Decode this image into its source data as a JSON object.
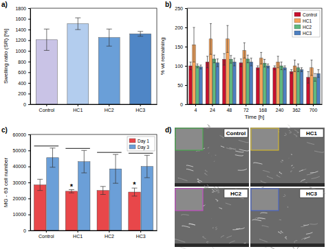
{
  "chart_data": [
    {
      "type": "bar",
      "panel_label": "a)",
      "y_label": "Swelling ratio (SR) [%]",
      "categories": [
        "Control",
        "HC1",
        "HC2",
        "HC3"
      ],
      "values": [
        1210,
        1510,
        1250,
        1320
      ],
      "errors": [
        200,
        110,
        160,
        45
      ],
      "colors": [
        "#c9c3e6",
        "#b3cdee",
        "#6a9fd8",
        "#4f86c6"
      ],
      "ylim": [
        0,
        1800
      ],
      "yticks": [
        0,
        200,
        400,
        600,
        800,
        1000,
        1200,
        1400,
        1600,
        1800
      ]
    },
    {
      "type": "bar",
      "panel_label": "b)",
      "x_label": "Time [h]",
      "y_label": "% wt remaining",
      "categories": [
        "4",
        "24",
        "48",
        "72",
        "168",
        "240",
        "362",
        "700"
      ],
      "series": [
        {
          "name": "Control",
          "color": "#c8102e",
          "values": [
            100,
            110,
            117,
            108,
            95,
            95,
            85,
            70
          ],
          "errors": [
            10,
            15,
            15,
            10,
            5,
            5,
            5,
            15
          ]
        },
        {
          "name": "HC1",
          "color": "#f5a35b",
          "values": [
            155,
            170,
            170,
            140,
            120,
            110,
            100,
            95
          ],
          "errors": [
            45,
            40,
            35,
            20,
            15,
            15,
            15,
            20
          ]
        },
        {
          "name": "HC2",
          "color": "#5fb87f",
          "values": [
            100,
            118,
            117,
            118,
            107,
            100,
            95,
            70
          ],
          "errors": [
            5,
            10,
            10,
            10,
            10,
            10,
            10,
            10
          ]
        },
        {
          "name": "HC3",
          "color": "#4d7fc0",
          "values": [
            97,
            108,
            110,
            110,
            100,
            95,
            90,
            80
          ],
          "errors": [
            5,
            10,
            10,
            10,
            5,
            5,
            5,
            10
          ]
        }
      ],
      "ylim": [
        0,
        250
      ],
      "yticks": [
        0,
        50,
        100,
        150,
        200,
        250
      ],
      "legend": "upper right"
    },
    {
      "type": "bar",
      "panel_label": "c)",
      "y_label": "MG - 63 cell number",
      "categories": [
        "Control",
        "HC1",
        "HC2",
        "HC3"
      ],
      "series": [
        {
          "name": "Day 1",
          "color": "#e8474a",
          "values": [
            28500,
            24500,
            25000,
            24000
          ],
          "errors": [
            3500,
            1000,
            2500,
            2500
          ],
          "annotations": [
            null,
            "*",
            null,
            "*"
          ]
        },
        {
          "name": "Day 3",
          "color": "#6b9fd8",
          "values": [
            45500,
            43000,
            38500,
            40000
          ],
          "errors": [
            6000,
            7000,
            9000,
            7000
          ]
        }
      ],
      "ylim": [
        0,
        60000
      ],
      "yticks": [
        0,
        10000,
        20000,
        30000,
        40000,
        50000,
        60000
      ],
      "legend": "upper right"
    }
  ],
  "image_panel": {
    "panel_label": "d)",
    "labels": [
      "Control",
      "HC1",
      "HC2",
      "HC3"
    ]
  }
}
